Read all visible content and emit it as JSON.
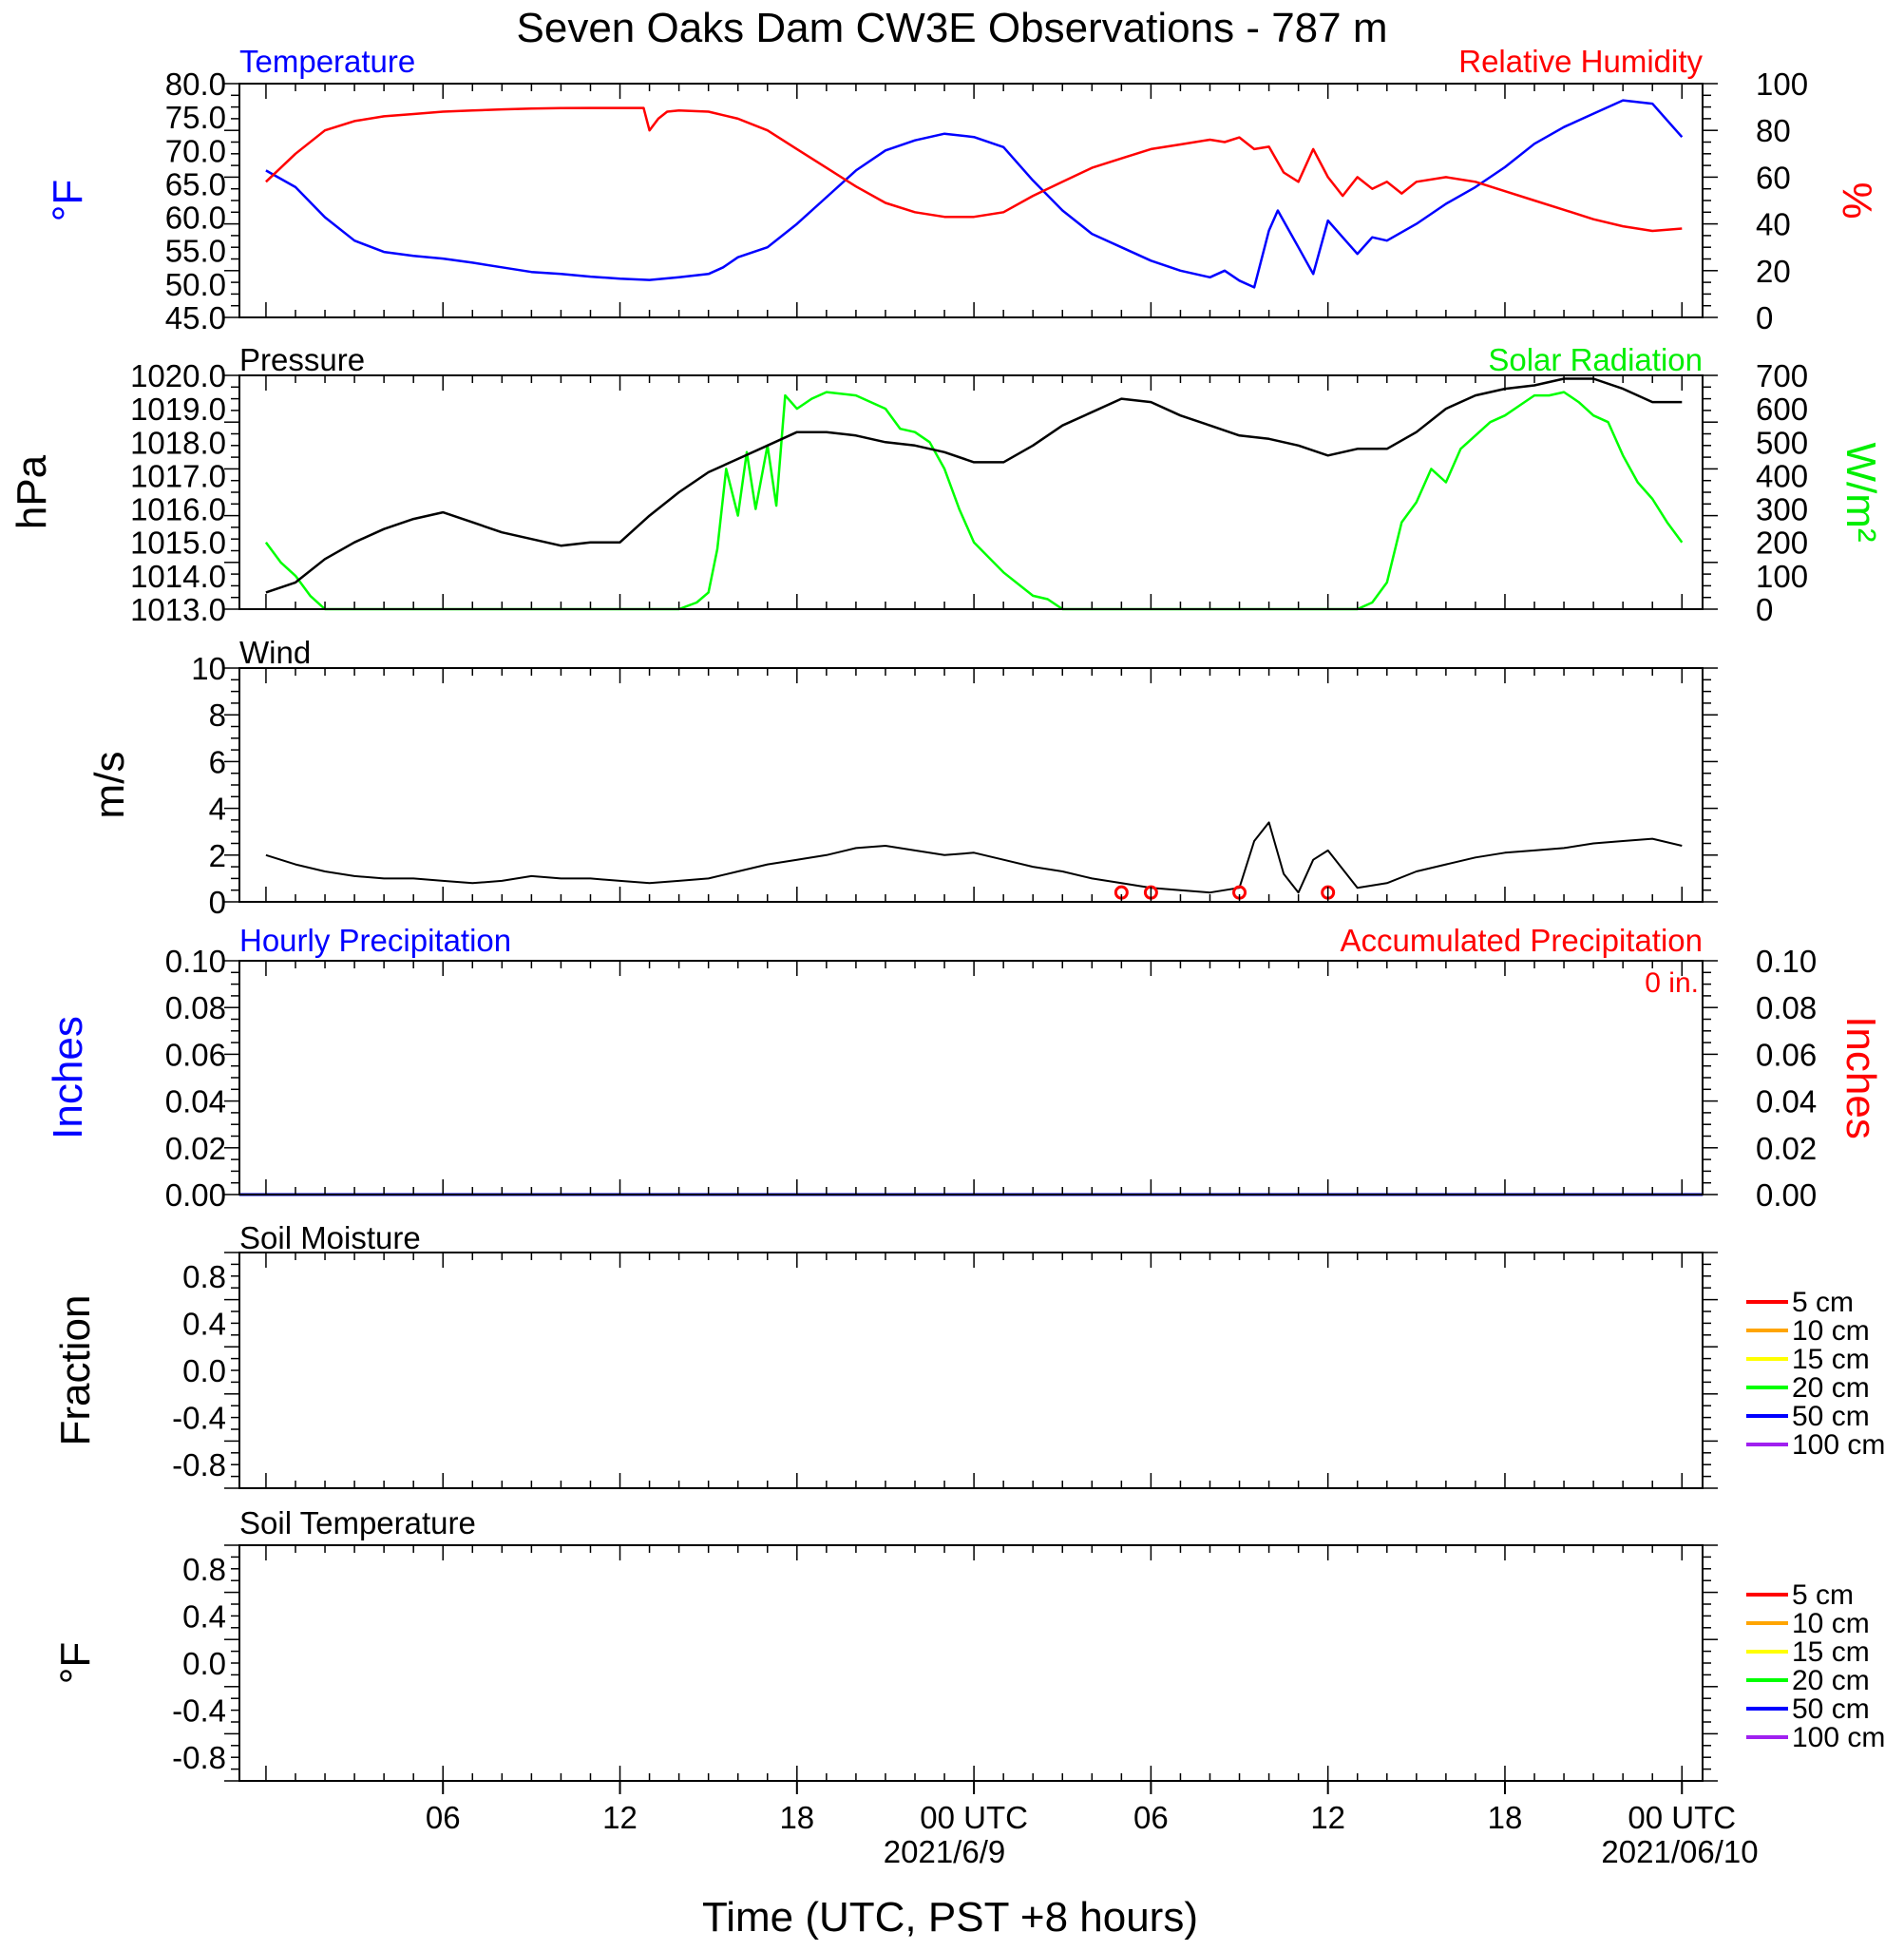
{
  "title": "Seven Oaks Dam CW3E Observations - 787 m",
  "x_axis": {
    "label": "Time (UTC, PST +8 hours)",
    "ticks": [
      "06",
      "12",
      "18",
      "00 UTC",
      "06",
      "12",
      "18",
      "00 UTC"
    ],
    "dates": [
      "2021/6/9",
      "2021/06/10"
    ],
    "range_hours": [
      -0.9,
      48.7
    ]
  },
  "legend_entries": [
    {
      "label": "5 cm",
      "color": "#ff0000"
    },
    {
      "label": "10 cm",
      "color": "#ffa500"
    },
    {
      "label": "15 cm",
      "color": "#ffff00"
    },
    {
      "label": "20 cm",
      "color": "#00ff00"
    },
    {
      "label": "50 cm",
      "color": "#0000ff"
    },
    {
      "label": "100 cm",
      "color": "#a020f0"
    }
  ],
  "panels": {
    "temperature": {
      "left_title": "Temperature",
      "right_title": "Relative Humidity",
      "left_ylabel": "°F",
      "right_ylabel": "%",
      "left_ticks": [
        "80.0",
        "75.0",
        "70.0",
        "65.0",
        "60.0",
        "55.0",
        "50.0",
        "45.0"
      ],
      "right_ticks": [
        "100",
        "80",
        "60",
        "40",
        "20",
        "0"
      ]
    },
    "pressure": {
      "left_title": "Pressure",
      "right_title": "Solar Radiation",
      "left_ylabel": "hPa",
      "right_ylabel": "W/m²",
      "left_ticks": [
        "1020.0",
        "1019.0",
        "1018.0",
        "1017.0",
        "1016.0",
        "1015.0",
        "1014.0",
        "1013.0"
      ],
      "right_ticks": [
        "700",
        "600",
        "500",
        "400",
        "300",
        "200",
        "100",
        "0"
      ]
    },
    "wind": {
      "left_title": "Wind",
      "left_ylabel": "m/s",
      "left_ticks": [
        "10",
        "8",
        "6",
        "4",
        "2",
        "0"
      ]
    },
    "precip": {
      "left_title": "Hourly Precipitation",
      "right_title": "Accumulated Precipitation",
      "annotation": "0 in.",
      "left_ylabel": "Inches",
      "right_ylabel": "Inches",
      "left_ticks": [
        "0.10",
        "0.08",
        "0.06",
        "0.04",
        "0.02",
        "0.00"
      ],
      "right_ticks": [
        "0.10",
        "0.08",
        "0.06",
        "0.04",
        "0.02",
        "0.00"
      ]
    },
    "soil_moisture": {
      "left_title": "Soil Moisture",
      "left_ylabel": "Fraction",
      "left_ticks": [
        "0.8",
        "0.4",
        "0.0",
        "-0.4",
        "-0.8"
      ]
    },
    "soil_temp": {
      "left_title": "Soil Temperature",
      "left_ylabel": "°F",
      "left_ticks": [
        "0.8",
        "0.4",
        "0.0",
        "-0.4",
        "-0.8"
      ]
    }
  },
  "chart_data": [
    {
      "type": "line",
      "panel": "temperature",
      "x_unit": "hours since 2021-06-08 00 UTC",
      "ylim_left": [
        45,
        80
      ],
      "ylim_right": [
        0,
        100
      ],
      "series": [
        {
          "name": "Temperature",
          "axis": "left",
          "color": "#0000ff",
          "x": [
            0,
            1,
            2,
            3,
            4,
            5,
            6,
            7,
            8,
            9,
            10,
            11,
            12,
            13,
            14,
            15,
            15.5,
            16,
            17,
            18,
            19,
            20,
            21,
            22,
            23,
            24,
            25,
            26,
            27,
            28,
            29,
            30,
            31,
            32,
            32.5,
            33,
            33.5,
            34,
            34.3,
            35,
            35.5,
            36,
            36.5,
            37,
            37.5,
            38,
            39,
            40,
            41,
            42,
            43,
            44,
            45,
            46,
            47,
            48
          ],
          "y": [
            67.0,
            64.5,
            60.0,
            56.5,
            54.8,
            54.2,
            53.8,
            53.2,
            52.5,
            51.8,
            51.5,
            51.1,
            50.8,
            50.6,
            51.0,
            51.5,
            52.5,
            54.0,
            55.5,
            59.0,
            63.0,
            67.0,
            70.0,
            71.5,
            72.5,
            72.0,
            70.5,
            65.5,
            61.0,
            57.5,
            55.5,
            53.5,
            52.0,
            51.0,
            52.0,
            50.5,
            49.5,
            58.0,
            61.0,
            55.5,
            51.5,
            59.5,
            57.0,
            54.5,
            57.0,
            56.5,
            59.0,
            62.0,
            64.5,
            67.5,
            71.0,
            73.5,
            75.5,
            77.5,
            77.0,
            72.0
          ]
        },
        {
          "name": "Relative Humidity",
          "axis": "right",
          "color": "#ff0000",
          "x": [
            0,
            1,
            2,
            3,
            4,
            5,
            6,
            7,
            8,
            9,
            10,
            11,
            12,
            12.8,
            13,
            13.3,
            13.6,
            14,
            15,
            16,
            17,
            18,
            19,
            20,
            21,
            22,
            23,
            24,
            25,
            26,
            27,
            28,
            29,
            30,
            31,
            32,
            32.5,
            33,
            33.5,
            34,
            34.5,
            35,
            35.5,
            36,
            36.5,
            37,
            37.5,
            38,
            38.5,
            39,
            40,
            41,
            42,
            43,
            44,
            45,
            46,
            47,
            48
          ],
          "y": [
            58,
            70,
            80,
            84,
            86,
            87,
            88,
            88.5,
            89,
            89.3,
            89.5,
            89.6,
            89.6,
            89.6,
            80,
            85,
            88,
            88.5,
            88,
            85,
            80,
            72,
            64,
            56,
            49,
            45,
            43,
            43,
            45,
            52,
            58,
            64,
            68,
            72,
            74,
            76,
            75,
            77,
            72,
            73,
            62,
            58,
            72,
            60,
            52,
            60,
            55,
            58,
            53,
            58,
            60,
            58,
            54,
            50,
            46,
            42,
            39,
            37,
            38
          ]
        }
      ]
    },
    {
      "type": "line",
      "panel": "pressure",
      "x_unit": "hours since 2021-06-08 00 UTC",
      "ylim_left": [
        1013,
        1020
      ],
      "ylim_right": [
        0,
        700
      ],
      "series": [
        {
          "name": "Pressure",
          "axis": "left",
          "color": "#000000",
          "x": [
            0,
            1,
            2,
            3,
            4,
            5,
            6,
            7,
            8,
            9,
            10,
            11,
            12,
            13,
            14,
            15,
            16,
            17,
            18,
            19,
            20,
            21,
            22,
            23,
            24,
            25,
            26,
            27,
            28,
            29,
            30,
            31,
            32,
            33,
            34,
            35,
            36,
            37,
            38,
            39,
            40,
            41,
            42,
            43,
            44,
            45,
            46,
            47,
            48
          ],
          "y": [
            1013.5,
            1013.8,
            1014.5,
            1015.0,
            1015.4,
            1015.7,
            1015.9,
            1015.6,
            1015.3,
            1015.1,
            1014.9,
            1015.0,
            1015.0,
            1015.8,
            1016.5,
            1017.1,
            1017.5,
            1017.9,
            1018.3,
            1018.3,
            1018.2,
            1018.0,
            1017.9,
            1017.7,
            1017.4,
            1017.4,
            1017.9,
            1018.5,
            1018.9,
            1019.3,
            1019.2,
            1018.8,
            1018.5,
            1018.2,
            1018.1,
            1017.9,
            1017.6,
            1017.8,
            1017.8,
            1018.3,
            1019.0,
            1019.4,
            1019.6,
            1019.7,
            1019.9,
            1019.9,
            1019.6,
            1019.2,
            1019.2
          ]
        },
        {
          "name": "Solar Radiation",
          "axis": "right",
          "color": "#00ff00",
          "x": [
            0,
            0.5,
            1,
            1.5,
            2,
            3,
            4,
            6,
            8,
            10,
            12,
            13,
            14,
            14.6,
            15,
            15.3,
            15.6,
            16,
            16.3,
            16.6,
            17,
            17.3,
            17.6,
            18,
            18.5,
            19,
            20,
            21,
            21.5,
            22,
            22.5,
            23,
            23.5,
            24,
            25,
            26,
            26.5,
            27,
            28,
            30,
            32,
            34,
            35,
            36,
            37,
            37.5,
            38,
            38.5,
            39,
            39.5,
            40,
            40.5,
            41,
            41.5,
            42,
            42.5,
            43,
            43.5,
            44,
            44.5,
            45,
            45.5,
            46,
            46.5,
            47,
            47.5,
            48
          ],
          "y": [
            200,
            140,
            100,
            40,
            0,
            0,
            0,
            0,
            0,
            0,
            0,
            0,
            0,
            20,
            50,
            180,
            420,
            280,
            470,
            300,
            490,
            310,
            640,
            600,
            630,
            650,
            640,
            600,
            540,
            530,
            500,
            420,
            300,
            200,
            110,
            40,
            30,
            0,
            0,
            0,
            0,
            0,
            0,
            0,
            0,
            20,
            80,
            260,
            320,
            420,
            380,
            480,
            520,
            560,
            580,
            610,
            640,
            640,
            650,
            620,
            580,
            560,
            460,
            380,
            330,
            260,
            200
          ]
        }
      ]
    },
    {
      "type": "line",
      "panel": "wind",
      "x_unit": "hours since 2021-06-08 00 UTC",
      "ylim": [
        0,
        10
      ],
      "series": [
        {
          "name": "Wind",
          "color": "#000000",
          "x": [
            0,
            1,
            2,
            3,
            4,
            5,
            6,
            7,
            8,
            9,
            10,
            11,
            12,
            13,
            14,
            15,
            16,
            17,
            18,
            19,
            20,
            21,
            22,
            23,
            24,
            25,
            26,
            27,
            28,
            29,
            30,
            31,
            32,
            33,
            33.5,
            34,
            34.5,
            35,
            35.5,
            36,
            37,
            38,
            39,
            40,
            41,
            42,
            43,
            44,
            45,
            46,
            47,
            48
          ],
          "y": [
            2.0,
            1.6,
            1.3,
            1.1,
            1.0,
            1.0,
            0.9,
            0.8,
            0.9,
            1.1,
            1.0,
            1.0,
            0.9,
            0.8,
            0.9,
            1.0,
            1.3,
            1.6,
            1.8,
            2.0,
            2.3,
            2.4,
            2.2,
            2.0,
            2.1,
            1.8,
            1.5,
            1.3,
            1.0,
            0.8,
            0.6,
            0.5,
            0.4,
            0.6,
            2.6,
            3.4,
            1.2,
            0.4,
            1.8,
            2.2,
            0.6,
            0.8,
            1.3,
            1.6,
            1.9,
            2.1,
            2.2,
            2.3,
            2.5,
            2.6,
            2.7,
            2.4
          ]
        }
      ],
      "calm_markers_x": [
        29,
        30,
        33,
        36
      ]
    },
    {
      "type": "line",
      "panel": "precip",
      "x_unit": "hours since 2021-06-08 00 UTC",
      "ylim": [
        0,
        0.1
      ],
      "series": [
        {
          "name": "Hourly Precipitation",
          "color": "#0000ff",
          "x": [
            -0.9,
            48.7
          ],
          "y": [
            0,
            0
          ]
        },
        {
          "name": "Accumulated Precipitation",
          "color": "#ff0000",
          "x": [
            -0.9,
            48.7
          ],
          "y": [
            0,
            0
          ]
        }
      ]
    },
    {
      "type": "line",
      "panel": "soil_moisture",
      "ylim": [
        -1,
        1
      ],
      "series": []
    },
    {
      "type": "line",
      "panel": "soil_temp",
      "ylim": [
        -1,
        1
      ],
      "series": []
    }
  ]
}
